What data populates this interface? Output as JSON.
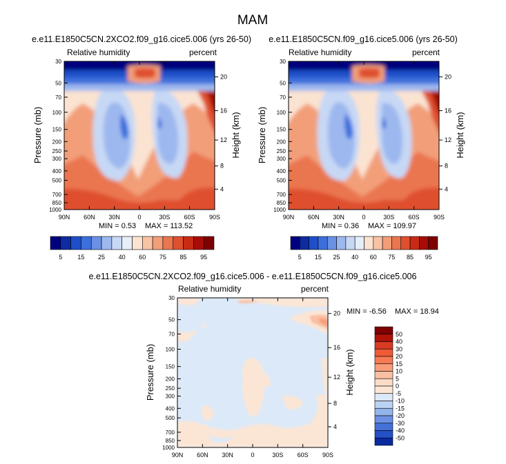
{
  "figure_title": "MAM",
  "chart_data": [
    {
      "type": "heatmap",
      "title": "e.e11.E1850C5CN.2XCO2.f09_g16.cice5.006 (yrs 26-50)",
      "left_string": "Relative humidity",
      "right_string": "percent",
      "ylabel": "Pressure (mb)",
      "ylabel_right": "Height (km)",
      "xlabel": "",
      "x_ticks": [
        "90N",
        "60N",
        "30N",
        "0",
        "30S",
        "60S",
        "90S"
      ],
      "y_ticks": [
        "30",
        "50",
        "70",
        "100",
        "150",
        "200",
        "250",
        "300",
        "400",
        "500",
        "700",
        "850",
        "1000"
      ],
      "y_ticks_right": [
        "20",
        "16",
        "12",
        "8",
        "4"
      ],
      "xlim": [
        90,
        -90
      ],
      "ylim": [
        1000,
        30
      ],
      "min_label": "MIN =   0.53",
      "max_label": "MAX = 113.52",
      "colorbar": {
        "levels": [
          "5",
          "15",
          "25",
          "40",
          "60",
          "75",
          "85",
          "95"
        ],
        "colors": [
          "#00007f",
          "#0c2ca0",
          "#1f4fc8",
          "#3d6fdc",
          "#6a91e6",
          "#9db8ef",
          "#c7d8f5",
          "#e6eefa",
          "#fbe3d1",
          "#f8c3a4",
          "#f29f79",
          "#ea7650",
          "#df502f",
          "#c92b15",
          "#a70d06",
          "#7e0000"
        ]
      }
    },
    {
      "type": "heatmap",
      "title": "e.e11.E1850C5CN.f09_g16.cice5.006 (yrs 26-50)",
      "left_string": "Relative humidity",
      "right_string": "percent",
      "ylabel": "Pressure (mb)",
      "ylabel_right": "Height (km)",
      "x_ticks": [
        "90N",
        "60N",
        "30N",
        "0",
        "30S",
        "60S",
        "90S"
      ],
      "y_ticks": [
        "30",
        "50",
        "70",
        "100",
        "150",
        "200",
        "250",
        "300",
        "400",
        "500",
        "700",
        "850",
        "1000"
      ],
      "y_ticks_right": [
        "20",
        "16",
        "12",
        "8",
        "4"
      ],
      "xlim": [
        90,
        -90
      ],
      "ylim": [
        1000,
        30
      ],
      "min_label": "MIN =   0.36",
      "max_label": "MAX = 109.97",
      "colorbar": {
        "levels": [
          "5",
          "15",
          "25",
          "40",
          "60",
          "75",
          "85",
          "95"
        ],
        "colors": [
          "#00007f",
          "#0c2ca0",
          "#1f4fc8",
          "#3d6fdc",
          "#6a91e6",
          "#9db8ef",
          "#c7d8f5",
          "#e6eefa",
          "#fbe3d1",
          "#f8c3a4",
          "#f29f79",
          "#ea7650",
          "#df502f",
          "#c92b15",
          "#a70d06",
          "#7e0000"
        ]
      }
    },
    {
      "type": "heatmap",
      "title": "e.e11.E1850C5CN.2XCO2.f09_g16.cice5.006 - e.e11.E1850C5CN.f09_g16.cice5.006",
      "left_string": "Relative humidity",
      "right_string": "percent",
      "ylabel": "Pressure (mb)",
      "ylabel_right": "Height (km)",
      "x_ticks": [
        "90N",
        "60N",
        "30N",
        "0",
        "30S",
        "60S",
        "90S"
      ],
      "y_ticks": [
        "30",
        "50",
        "70",
        "100",
        "150",
        "200",
        "250",
        "300",
        "400",
        "500",
        "700",
        "850",
        "1000"
      ],
      "y_ticks_right": [
        "20",
        "16",
        "12",
        "8",
        "4"
      ],
      "xlim": [
        90,
        -90
      ],
      "ylim": [
        1000,
        30
      ],
      "min_label": "MIN =  -6.56",
      "max_label": "MAX =  18.94",
      "colorbar": {
        "levels": [
          "50",
          "40",
          "30",
          "20",
          "15",
          "10",
          "5",
          "0",
          "-5",
          "-10",
          "-15",
          "-20",
          "-30",
          "-40",
          "-50"
        ],
        "colors": [
          "#7e0000",
          "#b01208",
          "#d83a22",
          "#ee5a36",
          "#f57a54",
          "#f89c79",
          "#fabea2",
          "#fcdcc8",
          "#fbe6d6",
          "#dce9f8",
          "#bcd2f2",
          "#94b4ec",
          "#6b92e4",
          "#4470da",
          "#2450c8",
          "#0a2aa0"
        ]
      }
    }
  ]
}
